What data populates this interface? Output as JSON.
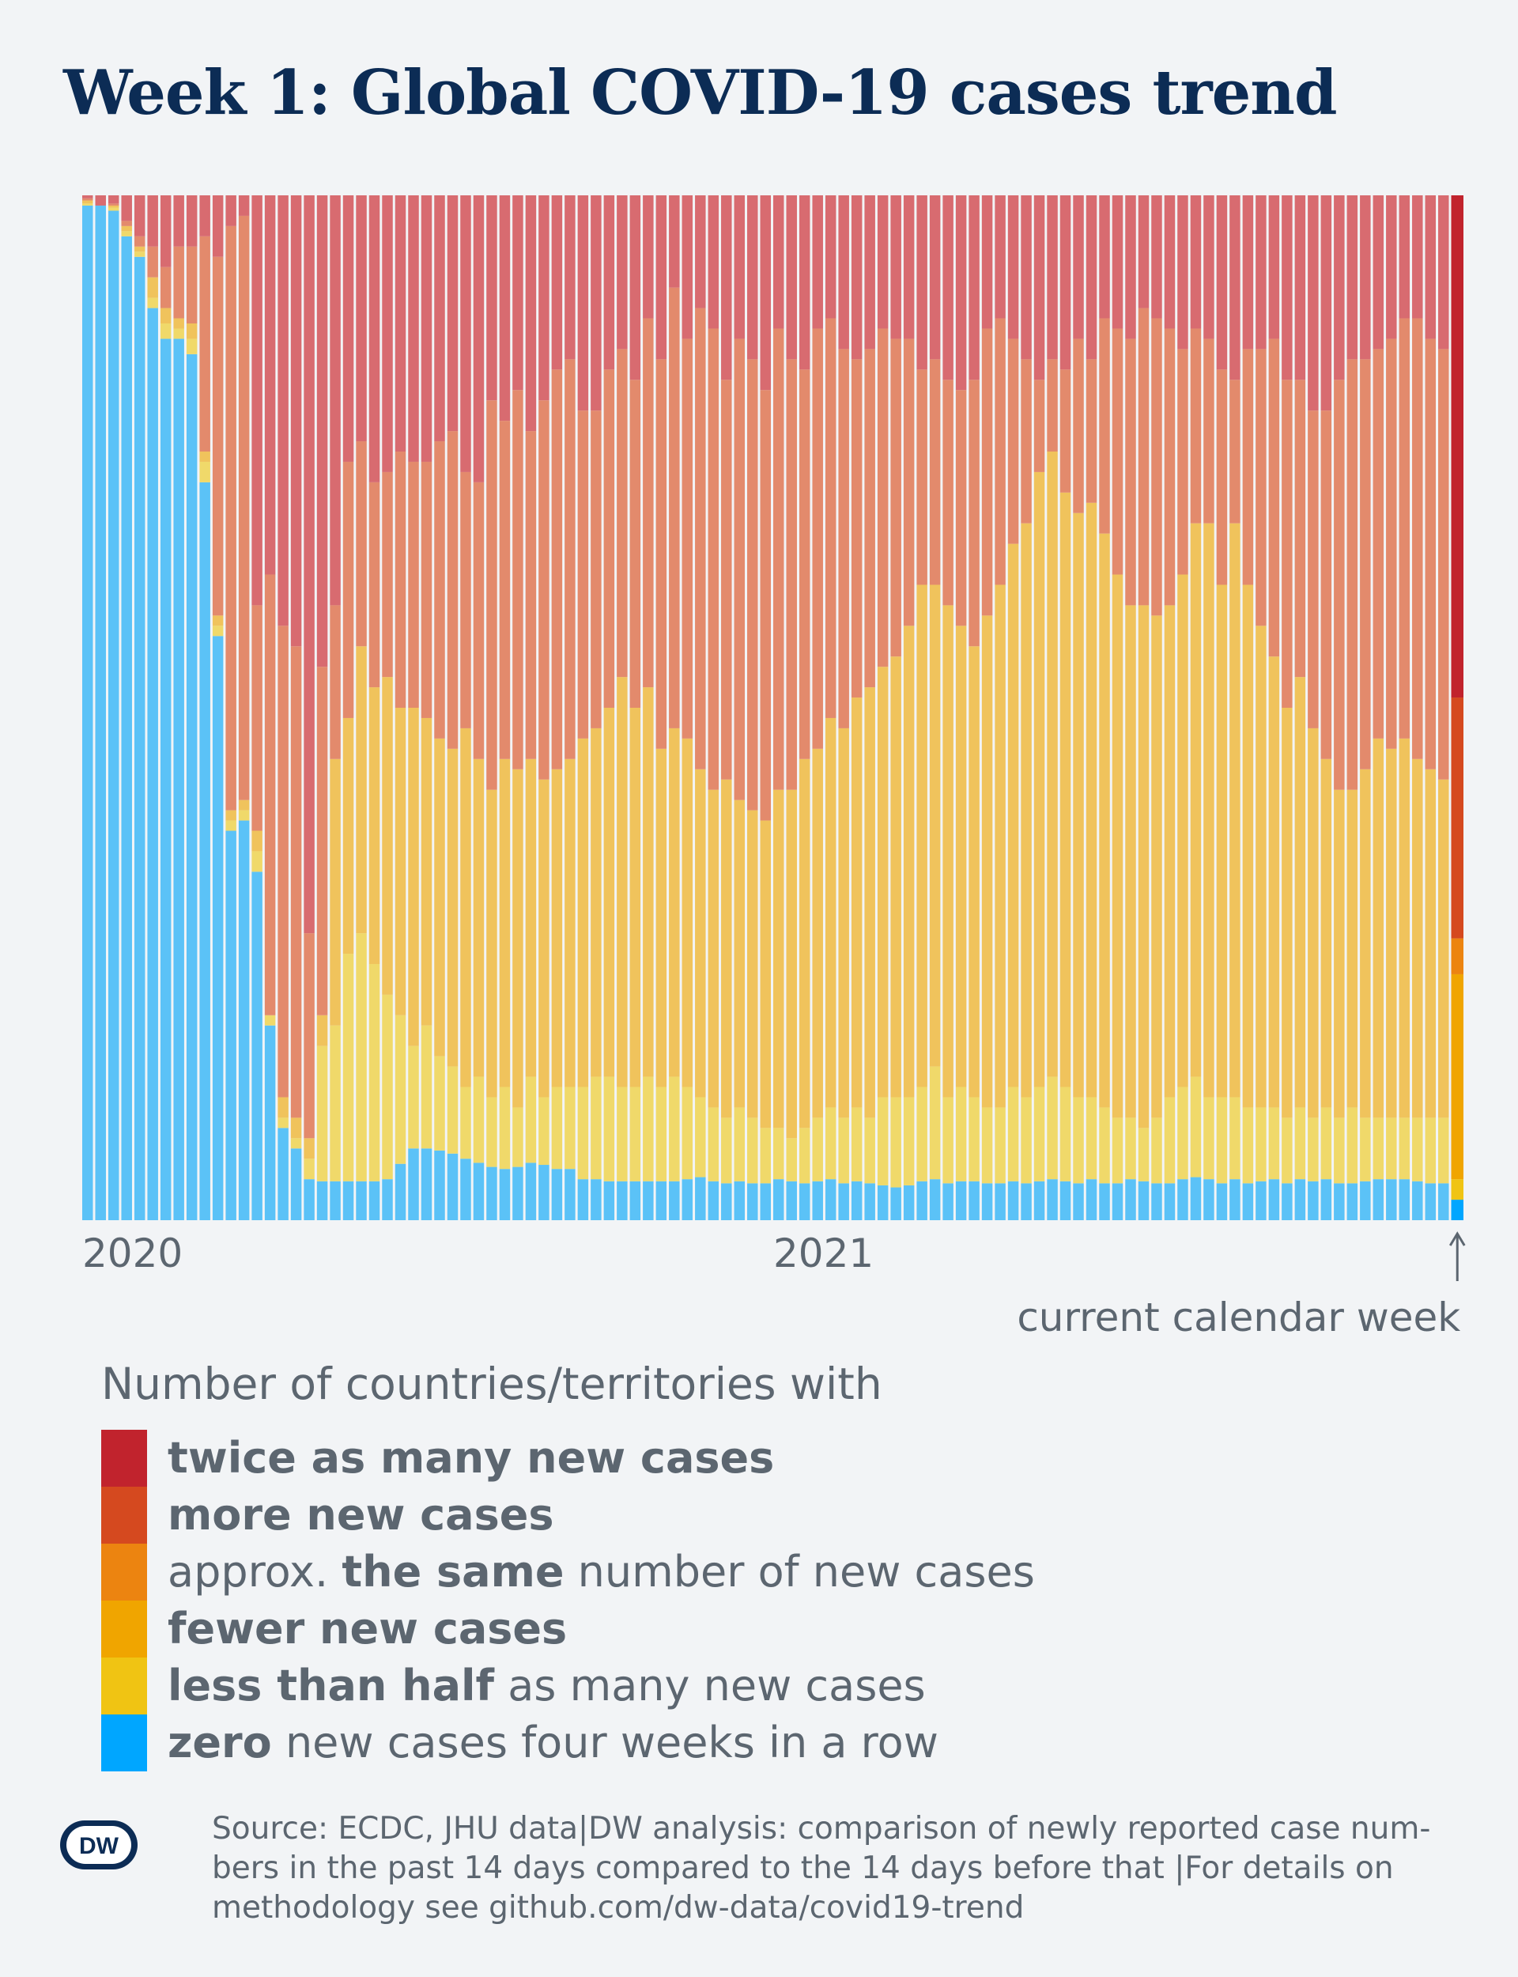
{
  "title": "Week 1: Global COVID-19 cases trend",
  "annotation": "current calendar week",
  "legend": {
    "title": "Number of countries/territories with",
    "items": [
      {
        "id": "twice",
        "color": "#c1232d",
        "parts": [
          {
            "text": "twice as many new cases",
            "bold": true
          }
        ]
      },
      {
        "id": "more",
        "color": "#d5491f",
        "parts": [
          {
            "text": "more new cases",
            "bold": true
          }
        ]
      },
      {
        "id": "same",
        "color": "#ec8410",
        "parts": [
          {
            "text": "approx. ",
            "bold": false
          },
          {
            "text": "the same",
            "bold": true
          },
          {
            "text": " number of new cases",
            "bold": false
          }
        ]
      },
      {
        "id": "fewer",
        "color": "#f0a500",
        "parts": [
          {
            "text": "fewer new cases",
            "bold": true
          }
        ]
      },
      {
        "id": "half",
        "color": "#f0c413",
        "parts": [
          {
            "text": "less than half",
            "bold": true
          },
          {
            "text": " as many new cases",
            "bold": false
          }
        ]
      },
      {
        "id": "zero",
        "color": "#00a6ff",
        "parts": [
          {
            "text": "zero",
            "bold": true
          },
          {
            "text": " new cases four weeks in a row",
            "bold": false
          }
        ]
      }
    ]
  },
  "source": {
    "line1": "Source: ECDC, JHU data|DW analysis: comparison of newly reported case num-",
    "line2": "bers in the past 14 days compared to the 14 days before that |For details on",
    "line3": "methodology see github.com/dw-data/covid19-trend"
  },
  "logo_text": "DW",
  "chart_data": {
    "type": "bar",
    "stacked": true,
    "normalized": true,
    "x_tick_labels": [
      "2020",
      "2021"
    ],
    "x_tick_weeks": [
      1,
      54
    ],
    "n_weeks": 105,
    "ylim": [
      0,
      1
    ],
    "legend_position": "bottom",
    "series_order_bottom_to_top": [
      "zero",
      "half",
      "same_fewer",
      "more_twice"
    ],
    "historical_colors": {
      "zero": "#5bc2f7",
      "half": "#f0d96a",
      "same_fewer": "#f0c35c",
      "more_twice": "#e38a6c",
      "twice_top": "#d86b70"
    },
    "notes": "Shares of countries per week (fractions of total). Historical weeks drawn in muted colors; the final current week drawn in full legend colors.",
    "boundaries_cumulative": {
      "description": "For each week: [zero_top, half_top, fewer_top, more_top] as cumulative fractions from the bottom.",
      "values": [
        [
          0.99,
          0.992,
          0.995,
          0.997
        ],
        [
          0.99,
          0.99,
          0.99,
          0.99
        ],
        [
          0.985,
          0.988,
          0.99,
          0.992
        ],
        [
          0.96,
          0.965,
          0.97,
          0.975
        ],
        [
          0.94,
          0.945,
          0.95,
          0.96
        ],
        [
          0.89,
          0.9,
          0.92,
          0.95
        ],
        [
          0.86,
          0.875,
          0.89,
          0.93
        ],
        [
          0.86,
          0.87,
          0.88,
          0.95
        ],
        [
          0.845,
          0.86,
          0.875,
          0.95
        ],
        [
          0.72,
          0.74,
          0.75,
          0.96
        ],
        [
          0.57,
          0.58,
          0.59,
          0.94
        ],
        [
          0.38,
          0.39,
          0.4,
          0.97
        ],
        [
          0.39,
          0.4,
          0.41,
          0.98
        ],
        [
          0.34,
          0.36,
          0.38,
          0.6
        ],
        [
          0.19,
          0.2,
          0.2,
          0.63
        ],
        [
          0.09,
          0.1,
          0.12,
          0.58
        ],
        [
          0.07,
          0.08,
          0.1,
          0.56
        ],
        [
          0.04,
          0.06,
          0.08,
          0.28
        ],
        [
          0.038,
          0.17,
          0.2,
          0.54
        ],
        [
          0.038,
          0.19,
          0.45,
          0.6
        ],
        [
          0.038,
          0.26,
          0.49,
          0.74
        ],
        [
          0.038,
          0.28,
          0.56,
          0.76
        ],
        [
          0.038,
          0.25,
          0.52,
          0.72
        ],
        [
          0.04,
          0.22,
          0.53,
          0.73
        ],
        [
          0.055,
          0.2,
          0.5,
          0.75
        ],
        [
          0.07,
          0.17,
          0.5,
          0.74
        ],
        [
          0.07,
          0.19,
          0.49,
          0.74
        ],
        [
          0.068,
          0.16,
          0.47,
          0.76
        ],
        [
          0.065,
          0.15,
          0.46,
          0.77
        ],
        [
          0.06,
          0.13,
          0.48,
          0.73
        ],
        [
          0.056,
          0.14,
          0.45,
          0.72
        ],
        [
          0.052,
          0.12,
          0.42,
          0.8
        ],
        [
          0.05,
          0.13,
          0.45,
          0.78
        ],
        [
          0.052,
          0.11,
          0.44,
          0.81
        ],
        [
          0.056,
          0.14,
          0.45,
          0.77
        ],
        [
          0.054,
          0.12,
          0.43,
          0.8
        ],
        [
          0.05,
          0.13,
          0.44,
          0.83
        ],
        [
          0.05,
          0.13,
          0.45,
          0.84
        ],
        [
          0.04,
          0.13,
          0.47,
          0.79
        ],
        [
          0.04,
          0.14,
          0.48,
          0.79
        ],
        [
          0.038,
          0.14,
          0.5,
          0.83
        ],
        [
          0.038,
          0.13,
          0.53,
          0.85
        ],
        [
          0.038,
          0.13,
          0.5,
          0.82
        ],
        [
          0.038,
          0.14,
          0.52,
          0.88
        ],
        [
          0.038,
          0.13,
          0.46,
          0.84
        ],
        [
          0.038,
          0.14,
          0.48,
          0.91
        ],
        [
          0.04,
          0.13,
          0.47,
          0.86
        ],
        [
          0.042,
          0.12,
          0.44,
          0.89
        ],
        [
          0.038,
          0.11,
          0.42,
          0.87
        ],
        [
          0.036,
          0.1,
          0.43,
          0.82
        ],
        [
          0.038,
          0.11,
          0.41,
          0.86
        ],
        [
          0.036,
          0.1,
          0.4,
          0.84
        ],
        [
          0.036,
          0.09,
          0.39,
          0.81
        ],
        [
          0.04,
          0.09,
          0.42,
          0.87
        ],
        [
          0.038,
          0.08,
          0.42,
          0.84
        ],
        [
          0.036,
          0.09,
          0.45,
          0.83
        ],
        [
          0.038,
          0.1,
          0.46,
          0.87
        ],
        [
          0.04,
          0.11,
          0.49,
          0.88
        ],
        [
          0.036,
          0.1,
          0.48,
          0.85
        ],
        [
          0.038,
          0.11,
          0.51,
          0.84
        ],
        [
          0.036,
          0.1,
          0.52,
          0.85
        ],
        [
          0.034,
          0.12,
          0.54,
          0.87
        ],
        [
          0.032,
          0.12,
          0.55,
          0.86
        ],
        [
          0.034,
          0.12,
          0.58,
          0.86
        ],
        [
          0.038,
          0.13,
          0.62,
          0.83
        ],
        [
          0.04,
          0.15,
          0.62,
          0.84
        ],
        [
          0.036,
          0.12,
          0.6,
          0.82
        ],
        [
          0.038,
          0.13,
          0.58,
          0.81
        ],
        [
          0.038,
          0.12,
          0.56,
          0.82
        ],
        [
          0.036,
          0.11,
          0.59,
          0.87
        ],
        [
          0.036,
          0.11,
          0.62,
          0.88
        ],
        [
          0.038,
          0.13,
          0.66,
          0.86
        ],
        [
          0.036,
          0.12,
          0.68,
          0.84
        ],
        [
          0.038,
          0.13,
          0.73,
          0.82
        ],
        [
          0.04,
          0.14,
          0.75,
          0.84
        ],
        [
          0.038,
          0.13,
          0.71,
          0.83
        ],
        [
          0.036,
          0.12,
          0.69,
          0.86
        ],
        [
          0.04,
          0.12,
          0.7,
          0.84
        ],
        [
          0.036,
          0.11,
          0.67,
          0.88
        ],
        [
          0.036,
          0.1,
          0.63,
          0.87
        ],
        [
          0.04,
          0.1,
          0.6,
          0.86
        ],
        [
          0.038,
          0.09,
          0.6,
          0.89
        ],
        [
          0.036,
          0.1,
          0.59,
          0.88
        ],
        [
          0.036,
          0.12,
          0.6,
          0.87
        ],
        [
          0.04,
          0.13,
          0.63,
          0.85
        ],
        [
          0.042,
          0.14,
          0.68,
          0.87
        ],
        [
          0.04,
          0.12,
          0.68,
          0.86
        ],
        [
          0.036,
          0.12,
          0.62,
          0.83
        ],
        [
          0.04,
          0.12,
          0.68,
          0.82
        ],
        [
          0.036,
          0.11,
          0.62,
          0.85
        ],
        [
          0.038,
          0.11,
          0.58,
          0.85
        ],
        [
          0.04,
          0.11,
          0.55,
          0.86
        ],
        [
          0.036,
          0.1,
          0.5,
          0.82
        ],
        [
          0.04,
          0.11,
          0.53,
          0.82
        ],
        [
          0.038,
          0.1,
          0.48,
          0.79
        ],
        [
          0.04,
          0.11,
          0.45,
          0.79
        ],
        [
          0.036,
          0.1,
          0.42,
          0.82
        ],
        [
          0.036,
          0.11,
          0.42,
          0.84
        ],
        [
          0.038,
          0.1,
          0.44,
          0.84
        ],
        [
          0.04,
          0.1,
          0.47,
          0.85
        ],
        [
          0.04,
          0.1,
          0.46,
          0.86
        ],
        [
          0.04,
          0.1,
          0.47,
          0.88
        ],
        [
          0.038,
          0.1,
          0.45,
          0.88
        ],
        [
          0.036,
          0.1,
          0.44,
          0.86
        ],
        [
          0.036,
          0.1,
          0.43,
          0.85
        ]
      ]
    },
    "current_week": {
      "zero": 0.02,
      "half": 0.02,
      "fewer": 0.2,
      "same": 0.035,
      "more": 0.235,
      "twice": 0.49
    }
  }
}
